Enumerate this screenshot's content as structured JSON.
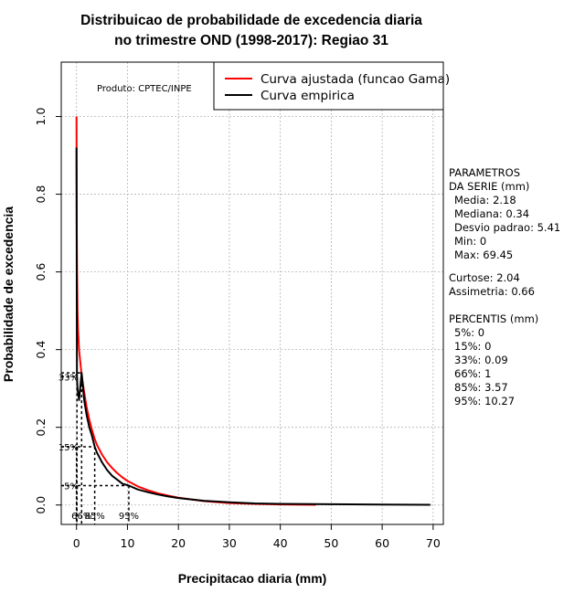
{
  "chart_data": {
    "type": "line",
    "title": [
      "Distribuicao de probabilidade de excedencia diaria",
      "no trimestre OND (1998-2017): Regiao 31"
    ],
    "xlabel": "Precipitacao diaria (mm)",
    "ylabel": "Probabilidade de excedencia",
    "xlim": [
      -3,
      72
    ],
    "ylim": [
      -0.05,
      1.14
    ],
    "xticks": [
      0,
      10,
      20,
      30,
      40,
      50,
      60,
      70
    ],
    "yticks": [
      0.0,
      0.2,
      0.4,
      0.6,
      0.8,
      1.0
    ],
    "ytick_labels": [
      "0.0",
      "0.2",
      "0.4",
      "0.6",
      "0.8",
      "1.0"
    ],
    "grid": true,
    "product_note": "Produto: CPTEC/INPE",
    "legend_position": "top-right",
    "series": [
      {
        "name": "Curva ajustada (funcao Gama)",
        "color": "#ff0000",
        "x": [
          0,
          0.05,
          0.1,
          0.2,
          0.3,
          0.5,
          0.8,
          1,
          1.5,
          2,
          2.5,
          3,
          3.57,
          4,
          5,
          6,
          7,
          8,
          9,
          10,
          12,
          14,
          16,
          18,
          20,
          25,
          30,
          35,
          40,
          47
        ],
        "y": [
          1.0,
          0.7,
          0.6,
          0.5,
          0.45,
          0.4,
          0.36,
          0.335,
          0.29,
          0.25,
          0.22,
          0.195,
          0.17,
          0.155,
          0.13,
          0.11,
          0.095,
          0.082,
          0.071,
          0.062,
          0.048,
          0.038,
          0.03,
          0.024,
          0.019,
          0.01,
          0.005,
          0.003,
          0.0015,
          0.0005
        ]
      },
      {
        "name": "Curva empirica",
        "color": "#000000",
        "x": [
          0,
          0.05,
          0.09,
          0.2,
          0.5,
          1,
          1.5,
          2,
          2.5,
          3,
          3.57,
          4,
          5,
          6,
          7,
          8,
          9,
          10.27,
          12,
          14,
          16,
          18,
          20,
          25,
          30,
          35,
          40,
          50,
          60,
          69.45
        ],
        "y": [
          0.92,
          0.53,
          0.33,
          0.3,
          0.27,
          0.34,
          0.27,
          0.23,
          0.2,
          0.18,
          0.15,
          0.135,
          0.11,
          0.09,
          0.075,
          0.065,
          0.055,
          0.05,
          0.04,
          0.033,
          0.027,
          0.022,
          0.018,
          0.011,
          0.007,
          0.004,
          0.003,
          0.002,
          0.001,
          0.0005
        ]
      }
    ],
    "percentile_markers": [
      {
        "label": "33%",
        "x": 0.09,
        "y": 0.33,
        "draw_x_label": false
      },
      {
        "label": "15%",
        "x": 0.0,
        "y": 0.15,
        "draw_x_label": false
      },
      {
        "label": "5%",
        "x": 0.0,
        "y": 0.05,
        "draw_x_label": false
      },
      {
        "label": "66%",
        "x": 1.0,
        "y": 0.34,
        "draw_x_label": true,
        "draw_y_label": false
      },
      {
        "label": "85%",
        "x": 3.57,
        "y": 0.15,
        "draw_x_label": true,
        "draw_y_label": false
      },
      {
        "label": "95%",
        "x": 10.27,
        "y": 0.05,
        "draw_x_label": true,
        "draw_y_label": false
      }
    ]
  },
  "side_panel": {
    "params_title_1": "PARAMETROS",
    "params_title_2": "DA SERIE (mm)",
    "media": "Media: 2.18",
    "mediana": "Mediana: 0.34",
    "desvio": "Desvio padrao: 5.41",
    "min": "Min: 0",
    "max": "Max: 69.45",
    "curtose": "Curtose: 2.04",
    "assimetria": "Assimetria: 0.66",
    "percentis_title": "PERCENTIS (mm)",
    "p5": "5%: 0",
    "p15": "15%: 0",
    "p33": "33%: 0.09",
    "p66": "66%: 1",
    "p85": "85%: 3.57",
    "p95": "95%: 10.27"
  }
}
